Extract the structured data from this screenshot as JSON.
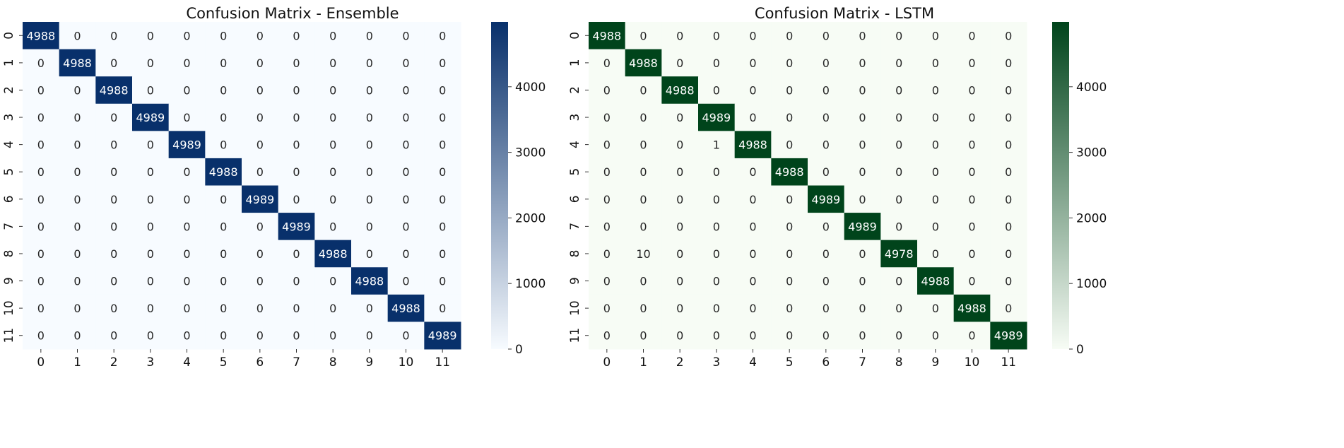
{
  "chart_data": [
    {
      "type": "heatmap",
      "title": "Confusion Matrix - Ensemble",
      "xlabel": "",
      "ylabel": "",
      "colormap": "Blues",
      "colors": {
        "low": "#f7fbff",
        "high": "#08306b"
      },
      "x_labels": [
        "0",
        "1",
        "2",
        "3",
        "4",
        "5",
        "6",
        "7",
        "8",
        "9",
        "10",
        "11"
      ],
      "y_labels": [
        "0",
        "1",
        "2",
        "3",
        "4",
        "5",
        "6",
        "7",
        "8",
        "9",
        "10",
        "11"
      ],
      "colorbar_ticks": [
        "0",
        "1000",
        "2000",
        "3000",
        "4000"
      ],
      "vmin": 0,
      "vmax": 4989,
      "matrix": [
        [
          4988,
          0,
          0,
          0,
          0,
          0,
          0,
          0,
          0,
          0,
          0,
          0
        ],
        [
          0,
          4988,
          0,
          0,
          0,
          0,
          0,
          0,
          0,
          0,
          0,
          0
        ],
        [
          0,
          0,
          4988,
          0,
          0,
          0,
          0,
          0,
          0,
          0,
          0,
          0
        ],
        [
          0,
          0,
          0,
          4989,
          0,
          0,
          0,
          0,
          0,
          0,
          0,
          0
        ],
        [
          0,
          0,
          0,
          0,
          4989,
          0,
          0,
          0,
          0,
          0,
          0,
          0
        ],
        [
          0,
          0,
          0,
          0,
          0,
          4988,
          0,
          0,
          0,
          0,
          0,
          0
        ],
        [
          0,
          0,
          0,
          0,
          0,
          0,
          4989,
          0,
          0,
          0,
          0,
          0
        ],
        [
          0,
          0,
          0,
          0,
          0,
          0,
          0,
          4989,
          0,
          0,
          0,
          0
        ],
        [
          0,
          0,
          0,
          0,
          0,
          0,
          0,
          0,
          4988,
          0,
          0,
          0
        ],
        [
          0,
          0,
          0,
          0,
          0,
          0,
          0,
          0,
          0,
          4988,
          0,
          0
        ],
        [
          0,
          0,
          0,
          0,
          0,
          0,
          0,
          0,
          0,
          0,
          4988,
          0
        ],
        [
          0,
          0,
          0,
          0,
          0,
          0,
          0,
          0,
          0,
          0,
          0,
          4989
        ]
      ]
    },
    {
      "type": "heatmap",
      "title": "Confusion Matrix - LSTM",
      "xlabel": "",
      "ylabel": "",
      "colormap": "Greens",
      "colors": {
        "low": "#f7fcf5",
        "high": "#00441b"
      },
      "x_labels": [
        "0",
        "1",
        "2",
        "3",
        "4",
        "5",
        "6",
        "7",
        "8",
        "9",
        "10",
        "11"
      ],
      "y_labels": [
        "0",
        "1",
        "2",
        "3",
        "4",
        "5",
        "6",
        "7",
        "8",
        "9",
        "10",
        "11"
      ],
      "colorbar_ticks": [
        "0",
        "1000",
        "2000",
        "3000",
        "4000"
      ],
      "vmin": 0,
      "vmax": 4989,
      "matrix": [
        [
          4988,
          0,
          0,
          0,
          0,
          0,
          0,
          0,
          0,
          0,
          0,
          0
        ],
        [
          0,
          4988,
          0,
          0,
          0,
          0,
          0,
          0,
          0,
          0,
          0,
          0
        ],
        [
          0,
          0,
          4988,
          0,
          0,
          0,
          0,
          0,
          0,
          0,
          0,
          0
        ],
        [
          0,
          0,
          0,
          4989,
          0,
          0,
          0,
          0,
          0,
          0,
          0,
          0
        ],
        [
          0,
          0,
          0,
          1,
          4988,
          0,
          0,
          0,
          0,
          0,
          0,
          0
        ],
        [
          0,
          0,
          0,
          0,
          0,
          4988,
          0,
          0,
          0,
          0,
          0,
          0
        ],
        [
          0,
          0,
          0,
          0,
          0,
          0,
          4989,
          0,
          0,
          0,
          0,
          0
        ],
        [
          0,
          0,
          0,
          0,
          0,
          0,
          0,
          4989,
          0,
          0,
          0,
          0
        ],
        [
          0,
          10,
          0,
          0,
          0,
          0,
          0,
          0,
          4978,
          0,
          0,
          0
        ],
        [
          0,
          0,
          0,
          0,
          0,
          0,
          0,
          0,
          0,
          4988,
          0,
          0
        ],
        [
          0,
          0,
          0,
          0,
          0,
          0,
          0,
          0,
          0,
          0,
          4988,
          0
        ],
        [
          0,
          0,
          0,
          0,
          0,
          0,
          0,
          0,
          0,
          0,
          0,
          4989
        ]
      ]
    }
  ]
}
